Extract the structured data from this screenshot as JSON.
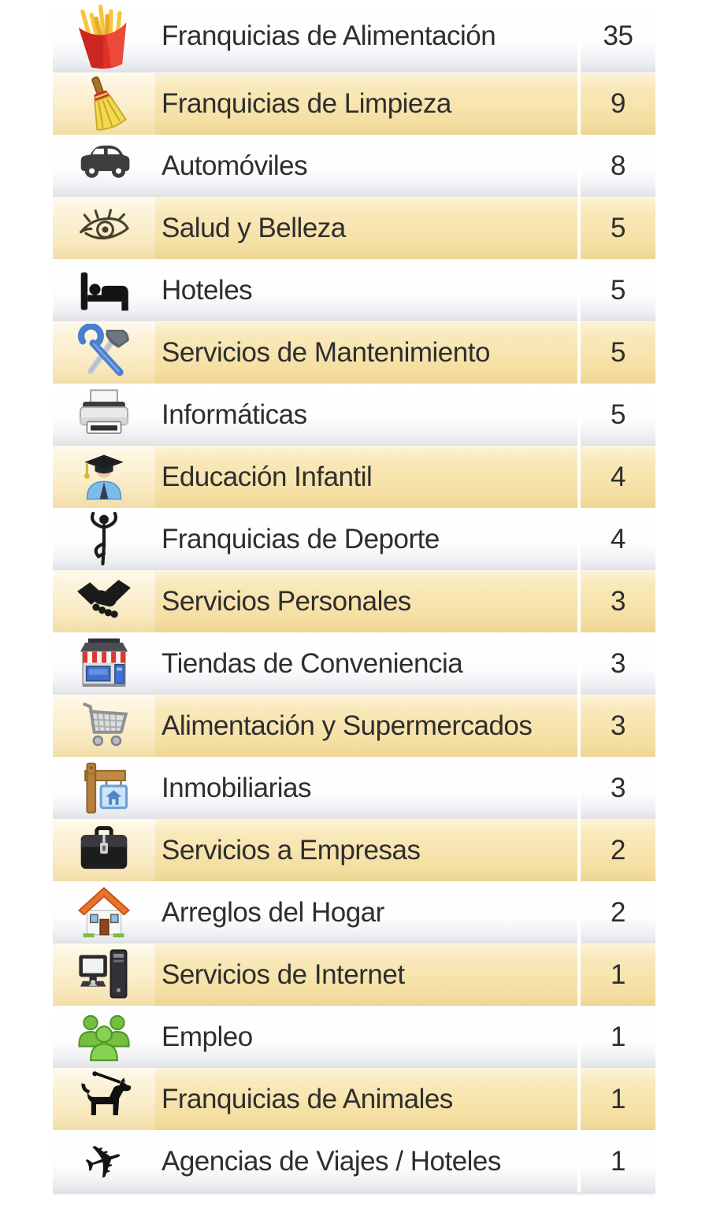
{
  "table": {
    "rows": [
      {
        "icon": "fries-icon",
        "label": "Franquicias de Alimentación",
        "count": "35"
      },
      {
        "icon": "broom-icon",
        "label": "Franquicias de Limpieza",
        "count": "9"
      },
      {
        "icon": "car-icon",
        "label": "Automóviles",
        "count": "8"
      },
      {
        "icon": "eye-icon",
        "label": "Salud y Belleza",
        "count": "5"
      },
      {
        "icon": "bed-icon",
        "label": "Hoteles",
        "count": "5"
      },
      {
        "icon": "tools-icon",
        "label": "Servicios de Mantenimiento",
        "count": "5"
      },
      {
        "icon": "printer-icon",
        "label": "Informáticas",
        "count": "5"
      },
      {
        "icon": "graduate-icon",
        "label": "Educación Infantil",
        "count": "4"
      },
      {
        "icon": "gymnast-icon",
        "label": "Franquicias de Deporte",
        "count": "4"
      },
      {
        "icon": "handshake-icon",
        "label": "Servicios Personales",
        "count": "3"
      },
      {
        "icon": "store-icon",
        "label": "Tiendas de Conveniencia",
        "count": "3"
      },
      {
        "icon": "cart-icon",
        "label": "Alimentación y Supermercados",
        "count": "3"
      },
      {
        "icon": "realestate-sign-icon",
        "label": "Inmobiliarias",
        "count": "3"
      },
      {
        "icon": "briefcase-icon",
        "label": "Servicios a Empresas",
        "count": "2"
      },
      {
        "icon": "house-icon",
        "label": "Arreglos del Hogar",
        "count": "2"
      },
      {
        "icon": "computer-icon",
        "label": "Servicios de Internet",
        "count": "1"
      },
      {
        "icon": "people-icon",
        "label": "Empleo",
        "count": "1"
      },
      {
        "icon": "dog-icon",
        "label": "Franquicias de Animales",
        "count": "1"
      },
      {
        "icon": "airplane-icon",
        "label": "Agencias de Viajes / Hoteles",
        "count": "1"
      }
    ]
  },
  "colors": {
    "text": "#2e2e2e",
    "row_highlight_top": "#fcf3d6",
    "row_highlight_mid": "#f7e3ac",
    "row_highlight_bottom": "#eed593",
    "row_plain_top": "#ffffff",
    "row_plain_bottom": "#e1e2e7",
    "divider": "#ffffff"
  }
}
